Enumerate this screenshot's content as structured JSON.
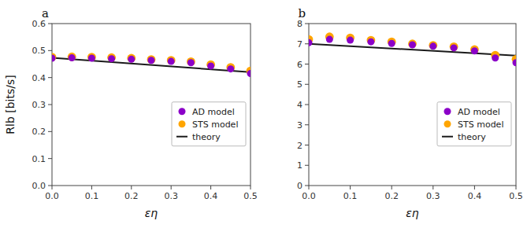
{
  "chart_data": [
    {
      "type": "scatter",
      "title": "a",
      "xlabel": "εη",
      "ylabel": "Rlb [bits/s]",
      "series": [
        {
          "name": "AD model",
          "type": "scatter",
          "color": "#8B00C8",
          "x": [
            0.0,
            0.05,
            0.1,
            0.15,
            0.2,
            0.25,
            0.3,
            0.35,
            0.4,
            0.45,
            0.5
          ],
          "values": [
            0.472,
            0.473,
            0.472,
            0.47,
            0.468,
            0.464,
            0.46,
            0.455,
            0.443,
            0.432,
            0.415
          ]
        },
        {
          "name": "STS model",
          "type": "scatter",
          "color": "#FFA500",
          "x": [
            0.0,
            0.05,
            0.1,
            0.15,
            0.2,
            0.25,
            0.3,
            0.35,
            0.4,
            0.45,
            0.5
          ],
          "values": [
            0.476,
            0.477,
            0.476,
            0.474,
            0.472,
            0.467,
            0.464,
            0.459,
            0.448,
            0.438,
            0.425
          ]
        },
        {
          "name": "theory",
          "type": "line",
          "color": "#1a1a1a",
          "x": [
            0.0,
            0.5
          ],
          "values": [
            0.473,
            0.42
          ]
        }
      ],
      "xlim": [
        0.0,
        0.5
      ],
      "xticks": [
        {
          "value": 0.0,
          "label": "0.0"
        },
        0.1,
        0.2,
        0.3,
        0.4,
        0.5
      ],
      "ylim": [
        0.0,
        0.6
      ],
      "yticks": [
        {
          "value": 0.0,
          "label": "0.0"
        },
        0.1,
        0.2,
        0.3,
        0.4,
        0.5,
        0.6
      ],
      "grid": false,
      "legend": "right"
    },
    {
      "type": "scatter",
      "title": "b",
      "xlabel": "εη",
      "series": [
        {
          "name": "AD model",
          "type": "scatter",
          "color": "#8B00C8",
          "x": [
            0.0,
            0.05,
            0.1,
            0.15,
            0.2,
            0.25,
            0.3,
            0.35,
            0.4,
            0.45,
            0.5
          ],
          "values": [
            7.06,
            7.22,
            7.18,
            7.1,
            7.02,
            6.95,
            6.88,
            6.8,
            6.65,
            6.3,
            6.07
          ]
        },
        {
          "name": "STS model",
          "type": "scatter",
          "color": "#FFA500",
          "x": [
            0.0,
            0.05,
            0.1,
            0.15,
            0.2,
            0.25,
            0.3,
            0.35,
            0.4,
            0.45,
            0.5
          ],
          "values": [
            7.22,
            7.35,
            7.3,
            7.18,
            7.1,
            7.0,
            6.93,
            6.86,
            6.72,
            6.44,
            6.24
          ]
        },
        {
          "name": "theory",
          "type": "line",
          "color": "#1a1a1a",
          "x": [
            0.0,
            0.5
          ],
          "values": [
            7.0,
            6.42
          ]
        }
      ],
      "xlim": [
        0.0,
        0.5
      ],
      "xticks": [
        {
          "value": 0.0,
          "label": "0.0"
        },
        0.1,
        0.2,
        0.3,
        0.4,
        0.5
      ],
      "ylim": [
        0.0,
        8.0
      ],
      "yticks": [
        0,
        1,
        2,
        3,
        4,
        5,
        6,
        7,
        8
      ],
      "grid": false,
      "legend": "right"
    }
  ]
}
